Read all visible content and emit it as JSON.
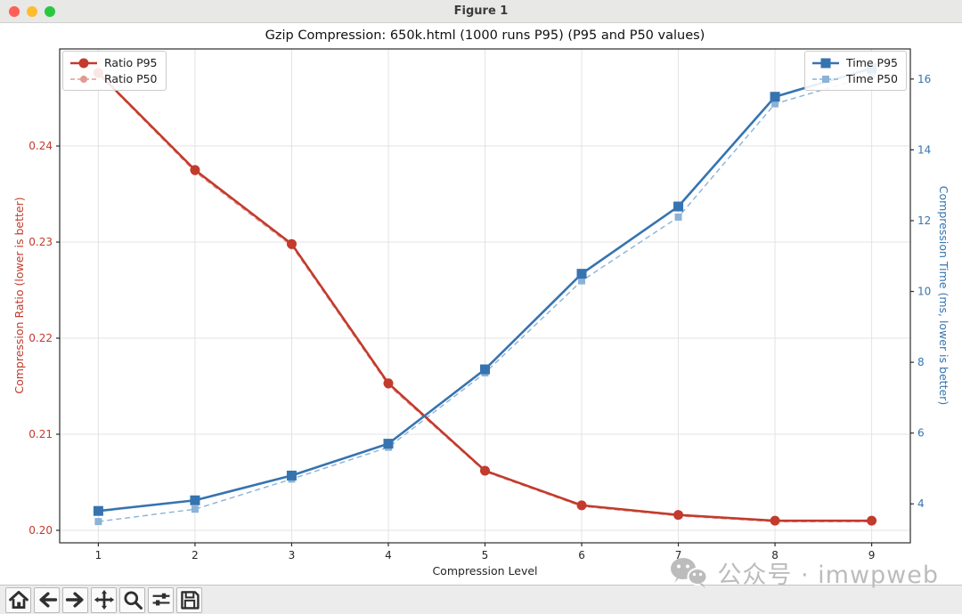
{
  "window": {
    "title": "Figure 1"
  },
  "watermark": {
    "text": "公众号 · imwpweb",
    "icon": "wechat-icon",
    "color": "#bcbcbc"
  },
  "toolbar": {
    "buttons": [
      "home",
      "back",
      "forward",
      "pan",
      "zoom",
      "configure-subplots",
      "save"
    ]
  },
  "chart_data": {
    "type": "line",
    "title": "Gzip Compression: 650k.html (1000 runs P95) (P95 and P50 values)",
    "xlabel": "Compression Level",
    "ylabel_left": "Compression Ratio (lower is better)",
    "ylabel_right": "Compression Time (ms, lower is better)",
    "x": [
      1,
      2,
      3,
      4,
      5,
      6,
      7,
      8,
      9
    ],
    "series": [
      {
        "name": "Ratio P95",
        "axis": "left",
        "style": "solid",
        "marker": "circle",
        "color": "#c23b2c",
        "values": [
          0.2476,
          0.2375,
          0.2298,
          0.2153,
          0.2062,
          0.2026,
          0.2016,
          0.201,
          0.201
        ]
      },
      {
        "name": "Ratio P50",
        "axis": "left",
        "style": "dashed",
        "marker": "circle",
        "color": "#e09b93",
        "values": [
          0.2475,
          0.2373,
          0.2296,
          0.2151,
          0.2061,
          0.2025,
          0.2015,
          0.2009,
          0.2009
        ]
      },
      {
        "name": "Time P95",
        "axis": "right",
        "style": "solid",
        "marker": "square",
        "color": "#3674b0",
        "values": [
          3.8,
          4.1,
          4.8,
          5.7,
          7.8,
          10.5,
          12.4,
          15.5,
          16.3
        ]
      },
      {
        "name": "Time P50",
        "axis": "right",
        "style": "dashed",
        "marker": "square",
        "color": "#8cb2d7",
        "values": [
          3.5,
          3.85,
          4.7,
          5.6,
          7.7,
          10.3,
          12.1,
          15.3,
          16.1
        ]
      }
    ],
    "xlim": [
      0.6,
      9.4
    ],
    "ylim_left": [
      0.1987,
      0.2501
    ],
    "ylim_right": [
      2.9,
      16.85
    ],
    "xticks": [
      1,
      2,
      3,
      4,
      5,
      6,
      7,
      8,
      9
    ],
    "yticks_left": [
      0.2,
      0.21,
      0.22,
      0.23,
      0.24
    ],
    "yticks_right": [
      4,
      6,
      8,
      10,
      12,
      14,
      16
    ],
    "grid": true,
    "legend_left_entries": [
      "Ratio P95",
      "Ratio P50"
    ],
    "legend_right_entries": [
      "Time P95",
      "Time P50"
    ],
    "grid_color": "#e3e3e3",
    "spine_color": "#2b2b2b"
  }
}
